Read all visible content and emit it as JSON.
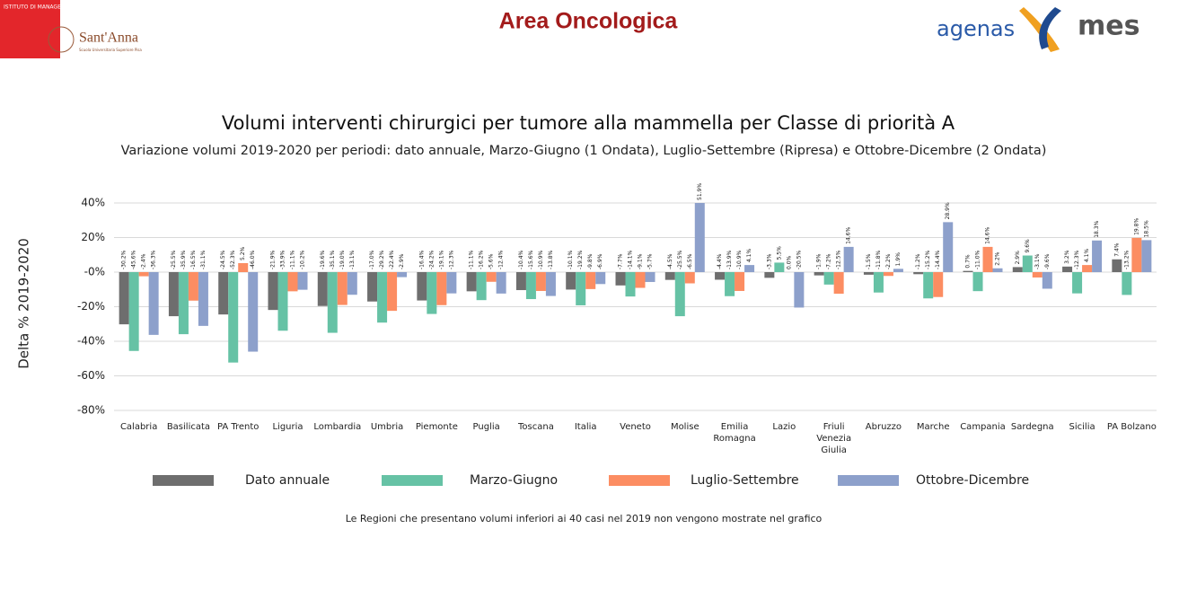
{
  "header": {
    "institute": "ISTITUTO DI MANAGEMENT",
    "school": "Sant'Anna",
    "school_sub": "Scuola Universitaria Superiore Pisa",
    "section": "Area Oncologica",
    "logo_agenas": "agenas",
    "logo_mes": "mes"
  },
  "chart_data": {
    "type": "bar",
    "title": "Volumi interventi chirurgici per tumore alla mammella per Classe di priorità A",
    "subtitle": "Variazione volumi 2019-2020 per periodi: dato annuale, Marzo-Giugno (1 Ondata), Luglio-Settembre (Ripresa) e Ottobre-Dicembre (2 Ondata)",
    "y_label": "Delta % 2019-2020",
    "categories": [
      "Calabria",
      "Basilicata",
      "PA Trento",
      "Liguria",
      "Lombardia",
      "Umbria",
      "Piemonte",
      "Puglia",
      "Toscana",
      "Italia",
      "Veneto",
      "Molise",
      "Emilia Romagna",
      "Lazio",
      "Friuli Venezia Giulia",
      "Abruzzo",
      "Marche",
      "Campania",
      "Sardegna",
      "Sicilia",
      "PA Bolzano"
    ],
    "series": [
      {
        "name": "Dato annuale",
        "color": "#6e6e6e",
        "values": [
          -30.2,
          -25.5,
          -24.5,
          -21.9,
          -19.6,
          -17.0,
          -16.4,
          -11.1,
          -10.4,
          -10.1,
          -7.7,
          -4.5,
          -4.4,
          -3.3,
          -1.9,
          -1.5,
          -1.2,
          0.7,
          2.9,
          3.2,
          7.4
        ],
        "value_labels": [
          "-30.2%",
          "-25.5%",
          "-24.5%",
          "-21.9%",
          "-19.6%",
          "-17.0%",
          "-16.4%",
          "-11.1%",
          "-10.4%",
          "-10.1%",
          "-7.7%",
          "-4.5%",
          "-4.4%",
          "-3.3%",
          "-1.9%",
          "-1.5%",
          "-1.2%",
          "0.7%",
          "2.9%",
          "3.2%",
          "7.4%"
        ]
      },
      {
        "name": "Marzo-Giugno",
        "color": "#66c2a5",
        "values": [
          -45.6,
          -35.9,
          -52.3,
          -33.9,
          -35.1,
          -29.2,
          -24.2,
          -16.2,
          -15.6,
          -19.2,
          -14.1,
          -25.5,
          -13.9,
          5.5,
          -7.2,
          -11.8,
          -15.2,
          -11.0,
          9.6,
          -12.3,
          -13.2
        ],
        "value_labels": [
          "-45.6%",
          "-35.9%",
          "-52.3%",
          "-33.9%",
          "-35.1%",
          "-29.2%",
          "-24.2%",
          "-16.2%",
          "-15.6%",
          "-19.2%",
          "-14.1%",
          "-25.5%",
          "-13.9%",
          "5.5%",
          "-7.2%",
          "-11.8%",
          "-15.2%",
          "-11.0%",
          "9.6%",
          "-12.3%",
          "-13.2%"
        ]
      },
      {
        "name": "Luglio-Settembre",
        "color": "#fc8d62",
        "values": [
          -2.4,
          -16.5,
          5.2,
          -11.1,
          -19.0,
          -22.4,
          -19.1,
          -5.6,
          -10.9,
          -9.8,
          -9.1,
          -6.5,
          -10.9,
          0.0,
          -12.5,
          -2.2,
          -14.4,
          14.6,
          -3.1,
          4.1,
          19.8
        ],
        "value_labels": [
          "-2.4%",
          "-16.5%",
          "5.2%",
          "-11.1%",
          "-19.0%",
          "-22.4%",
          "-19.1%",
          "-5.6%",
          "-10.9%",
          "-9.8%",
          "-9.1%",
          "-6.5%",
          "-10.9%",
          "0.0%",
          "-12.5%",
          "-2.2%",
          "-14.4%",
          "14.6%",
          "-3.1%",
          "4.1%",
          "19.8%"
        ]
      },
      {
        "name": "Ottobre-Dicembre",
        "color": "#8da0cb",
        "values": [
          -36.3,
          -31.1,
          -46.0,
          -10.2,
          -13.1,
          -2.9,
          -12.3,
          -12.4,
          -13.8,
          -6.9,
          -5.7,
          51.9,
          4.1,
          -20.5,
          14.6,
          1.9,
          28.9,
          2.2,
          -9.6,
          18.3,
          18.5
        ],
        "value_labels": [
          "-36.3%",
          "-31.1%",
          "-46.0%",
          "-10.2%",
          "-13.1%",
          "-2.9%",
          "-12.3%",
          "-12.4%",
          "-13.8%",
          "-6.9%",
          "-5.7%",
          "51.9%",
          "4.1%",
          "-20.5%",
          "14.6%",
          "1.9%",
          "28.9%",
          "2.2%",
          "-9.6%",
          "18.3%",
          "18.5%"
        ]
      }
    ],
    "ylim": [
      -80,
      40
    ],
    "yticks": [
      {
        "value": -80,
        "label": "-80%"
      },
      {
        "value": -60,
        "label": "-60%"
      },
      {
        "value": -40,
        "label": "-40%"
      },
      {
        "value": -20,
        "label": "-20%"
      },
      {
        "value": 0,
        "label": "-0%"
      },
      {
        "value": 20,
        "label": "20%"
      },
      {
        "value": 40,
        "label": "40%"
      }
    ],
    "grid": true,
    "legend": "bottom",
    "note": "Le Regioni che presentano volumi inferiori ai 40 casi nel 2019 non vengono mostrate nel grafico"
  }
}
